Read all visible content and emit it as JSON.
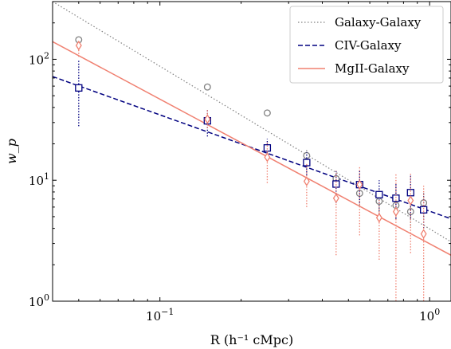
{
  "chart_data": {
    "type": "scatter",
    "title": "",
    "xlabel": "R (h⁻¹ cMpc)",
    "ylabel": "w_p",
    "xscale": "log",
    "yscale": "log",
    "xlim": [
      0.04,
      1.2
    ],
    "ylim": [
      1,
      300
    ],
    "x_ticks": [
      {
        "value": 0.1,
        "base": "10",
        "exp": "−1"
      },
      {
        "value": 1.0,
        "base": "10",
        "exp": "0"
      }
    ],
    "y_ticks": [
      {
        "value": 1,
        "base": "10",
        "exp": "0"
      },
      {
        "value": 10,
        "base": "10",
        "exp": "1"
      },
      {
        "value": 100,
        "base": "10",
        "exp": "2"
      }
    ],
    "grid": false,
    "legend": {
      "position": "top-right"
    },
    "series": [
      {
        "name": "Galaxy-Galaxy",
        "color": "#808080",
        "marker": "circle",
        "line_style": "dotted",
        "fit": {
          "r0": 0.04,
          "y0": 300,
          "r1": 1.2,
          "y1": 3.1
        },
        "points": [
          {
            "x": 0.05,
            "y": 145,
            "lo": 145,
            "hi": 145
          },
          {
            "x": 0.15,
            "y": 59,
            "lo": 59,
            "hi": 59
          },
          {
            "x": 0.25,
            "y": 36,
            "lo": 36,
            "hi": 36
          },
          {
            "x": 0.35,
            "y": 16,
            "lo": 14,
            "hi": 18
          },
          {
            "x": 0.45,
            "y": 10.3,
            "lo": 8.5,
            "hi": 12
          },
          {
            "x": 0.55,
            "y": 7.8,
            "lo": 6.2,
            "hi": 9.5
          },
          {
            "x": 0.65,
            "y": 6.7,
            "lo": 5,
            "hi": 8.3
          },
          {
            "x": 0.75,
            "y": 6.2,
            "lo": 4.8,
            "hi": 7.8
          },
          {
            "x": 0.85,
            "y": 5.5,
            "lo": 4.2,
            "hi": 7
          },
          {
            "x": 0.95,
            "y": 6.5,
            "lo": 5,
            "hi": 8
          }
        ]
      },
      {
        "name": "CIV-Galaxy",
        "color": "#000080",
        "marker": "square",
        "line_style": "dashed",
        "fit": {
          "r0": 0.04,
          "y0": 72,
          "r1": 1.2,
          "y1": 4.8
        },
        "points": [
          {
            "x": 0.05,
            "y": 58,
            "lo": 28,
            "hi": 98
          },
          {
            "x": 0.15,
            "y": 31,
            "lo": 23,
            "hi": 38
          },
          {
            "x": 0.25,
            "y": 18.5,
            "lo": 15,
            "hi": 22
          },
          {
            "x": 0.35,
            "y": 14,
            "lo": 11,
            "hi": 17
          },
          {
            "x": 0.45,
            "y": 9.3,
            "lo": 6.5,
            "hi": 12
          },
          {
            "x": 0.55,
            "y": 9.2,
            "lo": 6.5,
            "hi": 12
          },
          {
            "x": 0.65,
            "y": 7.6,
            "lo": 5.2,
            "hi": 10
          },
          {
            "x": 0.75,
            "y": 7.1,
            "lo": 4.8,
            "hi": 9.5
          },
          {
            "x": 0.85,
            "y": 7.9,
            "lo": 4.8,
            "hi": 11
          },
          {
            "x": 0.95,
            "y": 5.7,
            "lo": 3.8,
            "hi": 8
          }
        ]
      },
      {
        "name": "MgII-Galaxy",
        "color": "#f08070",
        "marker": "diamond",
        "line_style": "solid",
        "fit": {
          "r0": 0.04,
          "y0": 140,
          "r1": 1.2,
          "y1": 2.4
        },
        "points": [
          {
            "x": 0.05,
            "y": 130,
            "lo": 105,
            "hi": 140
          },
          {
            "x": 0.15,
            "y": 32,
            "lo": 27,
            "hi": 38
          },
          {
            "x": 0.25,
            "y": 15.5,
            "lo": 9.5,
            "hi": 21
          },
          {
            "x": 0.35,
            "y": 9.8,
            "lo": 6,
            "hi": 14
          },
          {
            "x": 0.45,
            "y": 7.1,
            "lo": 2.4,
            "hi": 12
          },
          {
            "x": 0.55,
            "y": 9.2,
            "lo": 3.5,
            "hi": 13
          },
          {
            "x": 0.65,
            "y": 4.9,
            "lo": 2.2,
            "hi": 7
          },
          {
            "x": 0.75,
            "y": 5.5,
            "lo": 0.95,
            "hi": 11.5
          },
          {
            "x": 0.85,
            "y": 6.8,
            "lo": 2.5,
            "hi": 11.5
          },
          {
            "x": 0.95,
            "y": 3.6,
            "lo": 0.95,
            "hi": 9
          }
        ]
      }
    ]
  }
}
